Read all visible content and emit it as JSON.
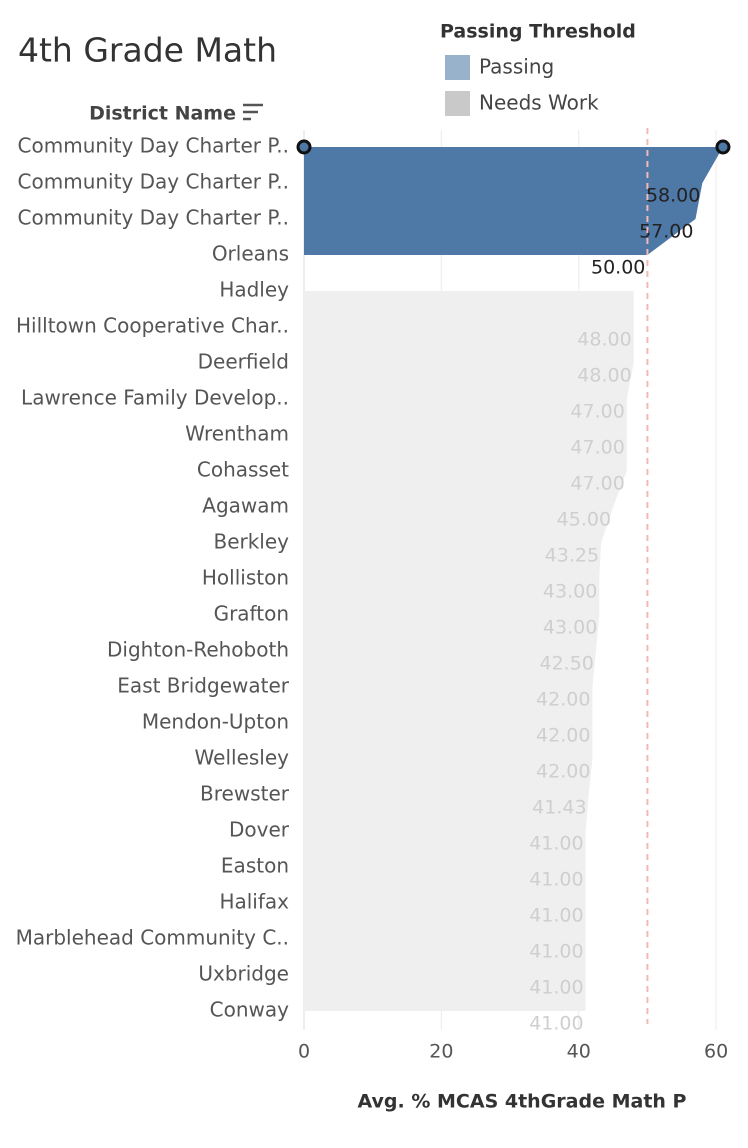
{
  "chart_data": {
    "type": "area",
    "orientation": "horizontal",
    "title": "4th Grade Math",
    "y_label": "District Name",
    "x_label": "Avg. % MCAS 4thGrade Math P",
    "legend_title": "Passing Threshold",
    "categories": [
      "Community Day Charter P..",
      "Community Day Charter P..",
      "Community Day Charter P..",
      "Orleans",
      "Hadley",
      "Hilltown Cooperative Char..",
      "Deerfield",
      "Lawrence Family Develop..",
      "Wrentham",
      "Cohasset",
      "Agawam",
      "Berkley",
      "Holliston",
      "Grafton",
      "Dighton-Rehoboth",
      "East Bridgewater",
      "Mendon-Upton",
      "Wellesley",
      "Brewster",
      "Dover",
      "Easton",
      "Halifax",
      "Marblehead Community C..",
      "Uxbridge",
      "Conway"
    ],
    "series": [
      {
        "name": "Passing",
        "color": "#4e78a6",
        "legend_color": "#98b2cc",
        "label_color": "#222222",
        "values": [
          61,
          58,
          57,
          50,
          null,
          null,
          null,
          null,
          null,
          null,
          null,
          null,
          null,
          null,
          null,
          null,
          null,
          null,
          null,
          null,
          null,
          null,
          null,
          null,
          null
        ],
        "value_labels": [
          null,
          "58.00",
          "57.00",
          "50.00",
          null,
          null,
          null,
          null,
          null,
          null,
          null,
          null,
          null,
          null,
          null,
          null,
          null,
          null,
          null,
          null,
          null,
          null,
          null,
          null,
          null
        ]
      },
      {
        "name": "Needs Work",
        "color": "#efefef",
        "legend_color": "#c9c9c9",
        "label_color": "#cfcfcf",
        "values": [
          null,
          null,
          null,
          null,
          48,
          48,
          48,
          47,
          47,
          47,
          45,
          43.25,
          43,
          43,
          42.5,
          42,
          42,
          42,
          41.43,
          41,
          41,
          41,
          41,
          41,
          41
        ],
        "value_labels": [
          null,
          null,
          null,
          null,
          null,
          "48.00",
          "48.00",
          "47.00",
          "47.00",
          "47.00",
          "45.00",
          "43.25",
          "43.00",
          "43.00",
          "42.50",
          "42.00",
          "42.00",
          "42.00",
          "41.43",
          "41.00",
          "41.00",
          "41.00",
          "41.00",
          "41.00",
          "41.00"
        ]
      }
    ],
    "xlim": [
      0,
      64.5
    ],
    "xticks": [
      0,
      20,
      40,
      60
    ],
    "grid": true,
    "reference_line": 50,
    "reference_color": "#f4b8b8"
  }
}
